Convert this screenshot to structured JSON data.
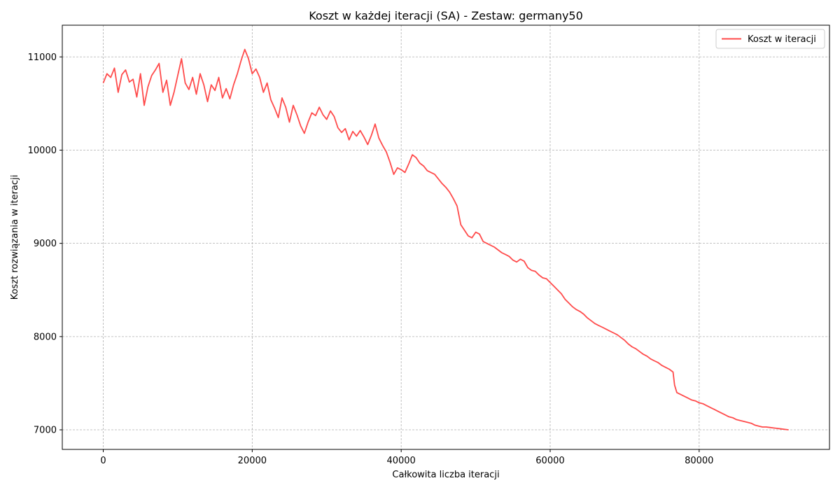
{
  "chart_data": {
    "type": "line",
    "title": "Koszt w każdej iteracji (SA) - Zestaw: germany50",
    "xlabel": "Całkowita liczba iteracji",
    "ylabel": "Koszt rozwiązania w iteracji",
    "xlim": [
      -5500,
      97500
    ],
    "ylim": [
      6790,
      11340
    ],
    "xticks": [
      0,
      20000,
      40000,
      60000,
      80000
    ],
    "yticks": [
      7000,
      8000,
      9000,
      10000,
      11000
    ],
    "grid": true,
    "legend_position": "top-right",
    "series": [
      {
        "name": "Koszt w iteracji",
        "color": "#ff4b4b",
        "points": [
          [
            0,
            10720
          ],
          [
            500,
            10820
          ],
          [
            1000,
            10780
          ],
          [
            1500,
            10880
          ],
          [
            2000,
            10620
          ],
          [
            2500,
            10810
          ],
          [
            3000,
            10860
          ],
          [
            3500,
            10730
          ],
          [
            4000,
            10760
          ],
          [
            4500,
            10570
          ],
          [
            5000,
            10820
          ],
          [
            5500,
            10480
          ],
          [
            6000,
            10680
          ],
          [
            6500,
            10800
          ],
          [
            7000,
            10860
          ],
          [
            7500,
            10930
          ],
          [
            8000,
            10620
          ],
          [
            8500,
            10750
          ],
          [
            9000,
            10480
          ],
          [
            9500,
            10620
          ],
          [
            10000,
            10800
          ],
          [
            10500,
            10980
          ],
          [
            11000,
            10720
          ],
          [
            11500,
            10650
          ],
          [
            12000,
            10780
          ],
          [
            12500,
            10600
          ],
          [
            13000,
            10820
          ],
          [
            13500,
            10700
          ],
          [
            14000,
            10520
          ],
          [
            14500,
            10700
          ],
          [
            15000,
            10640
          ],
          [
            15500,
            10780
          ],
          [
            16000,
            10560
          ],
          [
            16500,
            10660
          ],
          [
            17000,
            10550
          ],
          [
            17500,
            10700
          ],
          [
            18000,
            10820
          ],
          [
            18500,
            10960
          ],
          [
            19000,
            11080
          ],
          [
            19500,
            10980
          ],
          [
            20000,
            10820
          ],
          [
            20500,
            10870
          ],
          [
            21000,
            10780
          ],
          [
            21500,
            10620
          ],
          [
            22000,
            10720
          ],
          [
            22500,
            10540
          ],
          [
            23000,
            10450
          ],
          [
            23500,
            10350
          ],
          [
            24000,
            10560
          ],
          [
            24500,
            10460
          ],
          [
            25000,
            10300
          ],
          [
            25500,
            10480
          ],
          [
            26000,
            10380
          ],
          [
            26500,
            10260
          ],
          [
            27000,
            10180
          ],
          [
            27500,
            10300
          ],
          [
            28000,
            10400
          ],
          [
            28500,
            10370
          ],
          [
            29000,
            10460
          ],
          [
            29500,
            10380
          ],
          [
            30000,
            10330
          ],
          [
            30500,
            10420
          ],
          [
            31000,
            10360
          ],
          [
            31500,
            10240
          ],
          [
            32000,
            10190
          ],
          [
            32500,
            10230
          ],
          [
            33000,
            10110
          ],
          [
            33500,
            10200
          ],
          [
            34000,
            10150
          ],
          [
            34500,
            10210
          ],
          [
            35000,
            10140
          ],
          [
            35500,
            10060
          ],
          [
            36000,
            10160
          ],
          [
            36500,
            10280
          ],
          [
            37000,
            10130
          ],
          [
            37500,
            10050
          ],
          [
            38000,
            9980
          ],
          [
            38500,
            9870
          ],
          [
            39000,
            9740
          ],
          [
            39500,
            9810
          ],
          [
            40000,
            9790
          ],
          [
            40500,
            9760
          ],
          [
            41000,
            9850
          ],
          [
            41500,
            9950
          ],
          [
            42000,
            9920
          ],
          [
            42500,
            9860
          ],
          [
            43000,
            9830
          ],
          [
            43500,
            9780
          ],
          [
            44000,
            9760
          ],
          [
            44500,
            9740
          ],
          [
            45000,
            9690
          ],
          [
            45500,
            9640
          ],
          [
            46000,
            9600
          ],
          [
            46500,
            9550
          ],
          [
            47000,
            9480
          ],
          [
            47500,
            9400
          ],
          [
            48000,
            9200
          ],
          [
            48500,
            9140
          ],
          [
            49000,
            9080
          ],
          [
            49500,
            9060
          ],
          [
            50000,
            9120
          ],
          [
            50500,
            9100
          ],
          [
            51000,
            9020
          ],
          [
            51500,
            9000
          ],
          [
            52000,
            8980
          ],
          [
            52500,
            8960
          ],
          [
            53000,
            8930
          ],
          [
            53500,
            8900
          ],
          [
            54000,
            8880
          ],
          [
            54500,
            8860
          ],
          [
            55000,
            8820
          ],
          [
            55500,
            8800
          ],
          [
            56000,
            8830
          ],
          [
            56500,
            8810
          ],
          [
            57000,
            8740
          ],
          [
            57500,
            8710
          ],
          [
            58000,
            8700
          ],
          [
            58500,
            8660
          ],
          [
            59000,
            8630
          ],
          [
            59500,
            8620
          ],
          [
            60000,
            8580
          ],
          [
            60500,
            8540
          ],
          [
            61000,
            8500
          ],
          [
            61500,
            8460
          ],
          [
            62000,
            8400
          ],
          [
            62500,
            8360
          ],
          [
            63000,
            8320
          ],
          [
            63500,
            8290
          ],
          [
            64000,
            8270
          ],
          [
            64500,
            8240
          ],
          [
            65000,
            8200
          ],
          [
            65500,
            8170
          ],
          [
            66000,
            8140
          ],
          [
            66500,
            8120
          ],
          [
            67000,
            8100
          ],
          [
            67500,
            8080
          ],
          [
            68000,
            8060
          ],
          [
            68500,
            8040
          ],
          [
            69000,
            8020
          ],
          [
            69500,
            7990
          ],
          [
            70000,
            7960
          ],
          [
            70500,
            7920
          ],
          [
            71000,
            7890
          ],
          [
            71500,
            7870
          ],
          [
            72000,
            7840
          ],
          [
            72500,
            7810
          ],
          [
            73000,
            7790
          ],
          [
            73500,
            7760
          ],
          [
            74000,
            7740
          ],
          [
            74500,
            7720
          ],
          [
            75000,
            7690
          ],
          [
            75500,
            7670
          ],
          [
            76000,
            7650
          ],
          [
            76500,
            7620
          ],
          [
            76700,
            7480
          ],
          [
            77000,
            7400
          ],
          [
            77500,
            7380
          ],
          [
            78000,
            7360
          ],
          [
            78500,
            7340
          ],
          [
            79000,
            7320
          ],
          [
            79500,
            7310
          ],
          [
            80000,
            7290
          ],
          [
            80500,
            7280
          ],
          [
            81000,
            7260
          ],
          [
            81500,
            7240
          ],
          [
            82000,
            7220
          ],
          [
            82500,
            7200
          ],
          [
            83000,
            7180
          ],
          [
            83500,
            7160
          ],
          [
            84000,
            7140
          ],
          [
            84500,
            7130
          ],
          [
            85000,
            7110
          ],
          [
            85500,
            7100
          ],
          [
            86000,
            7090
          ],
          [
            86500,
            7080
          ],
          [
            87000,
            7070
          ],
          [
            87500,
            7050
          ],
          [
            88000,
            7040
          ],
          [
            88500,
            7030
          ],
          [
            89000,
            7030
          ],
          [
            89500,
            7025
          ],
          [
            90000,
            7020
          ],
          [
            90500,
            7015
          ],
          [
            91000,
            7010
          ],
          [
            91500,
            7005
          ],
          [
            92000,
            7000
          ]
        ]
      }
    ]
  }
}
